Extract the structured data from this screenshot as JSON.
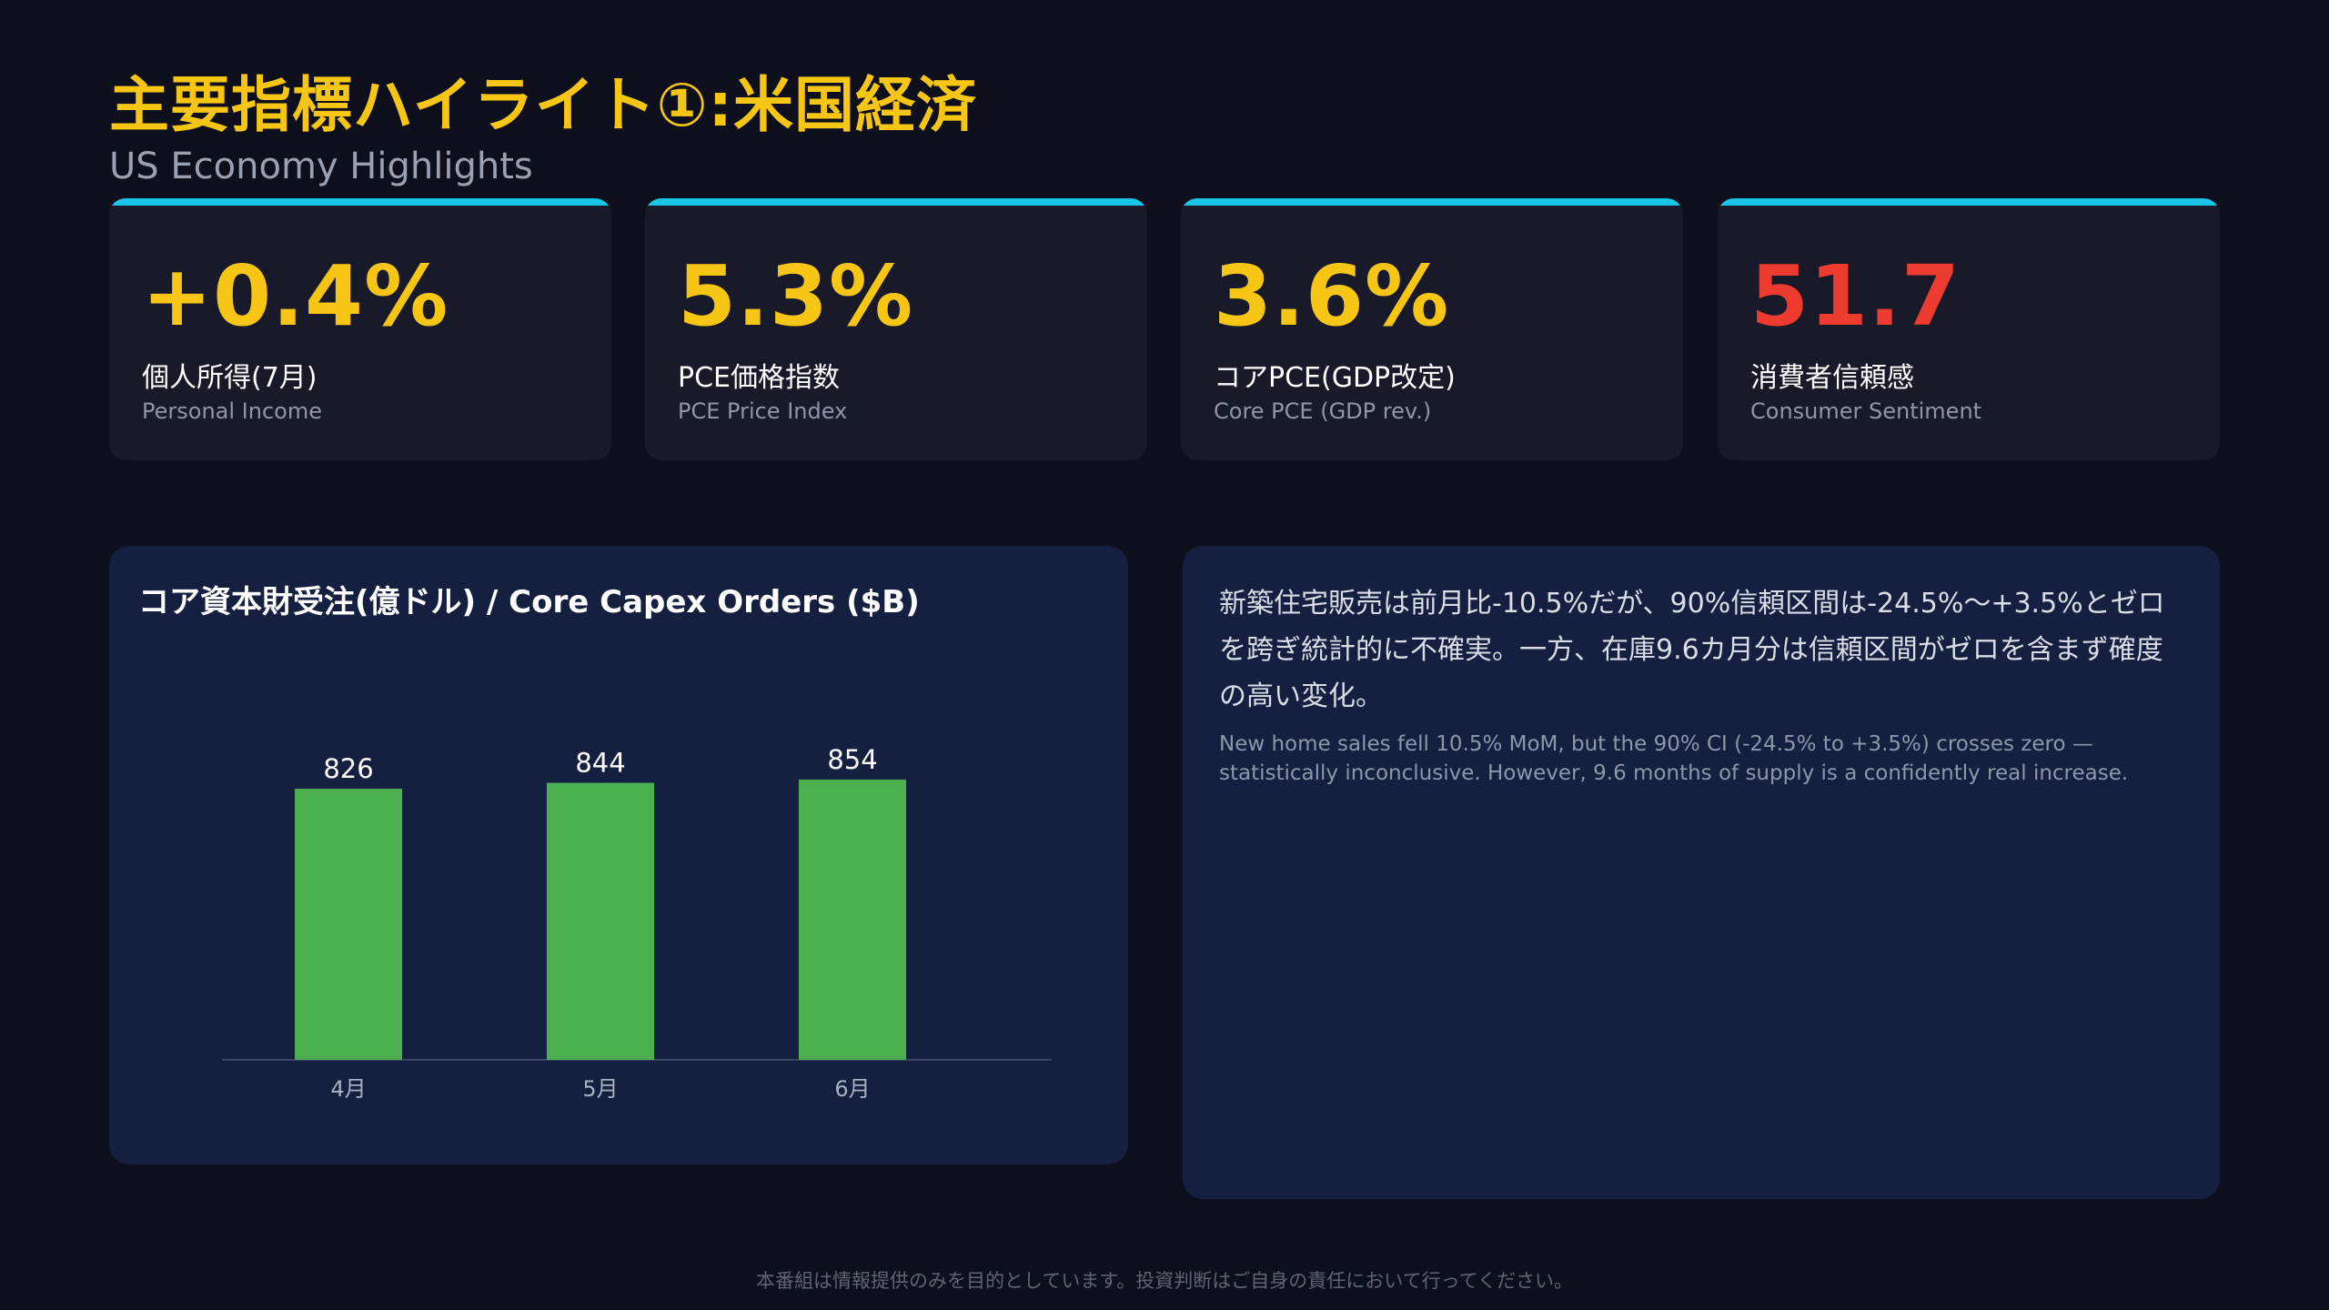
{
  "header": {
    "title": "主要指標ハイライト①:米国経済",
    "subtitle": "US Economy Highlights"
  },
  "kpis": [
    {
      "value": "+0.4%",
      "label_ja": "個人所得(7月)",
      "label_en": "Personal Income",
      "color": "#f7c614"
    },
    {
      "value": "5.3%",
      "label_ja": "PCE価格指数",
      "label_en": "PCE Price Index",
      "color": "#f7c614"
    },
    {
      "value": "3.6%",
      "label_ja": "コアPCE(GDP改定)",
      "label_en": "Core PCE (GDP rev.)",
      "color": "#f7c614"
    },
    {
      "value": "51.7",
      "label_ja": "消費者信頼感",
      "label_en": "Consumer Sentiment",
      "color": "#ee3b30"
    }
  ],
  "chart_data": {
    "type": "bar",
    "title": "コア資本財受注(億ドル) / Core Capex Orders ($B)",
    "categories": [
      "4月",
      "5月",
      "6月"
    ],
    "values": [
      826,
      844,
      854
    ],
    "data_labels": [
      "826",
      "844",
      "854"
    ],
    "bar_color": "#4caf50",
    "ylim": [
      0,
      900
    ],
    "grid": false,
    "legend": "none"
  },
  "note": {
    "ja": "新築住宅販売は前月比-10.5%だが、90%信頼区間は-24.5%〜+3.5%とゼロを跨ぎ統計的に不確実。一方、在庫9.6カ月分は信頼区間がゼロを含まず確度の高い変化。",
    "en": "New home sales fell 10.5% MoM, but the 90% CI (-24.5% to +3.5%) crosses zero — statistically inconclusive. However, 9.6 months of supply is a confidently real increase."
  },
  "footer": {
    "disclaimer": "本番組は情報提供のみを目的としています。投資判断はご自身の責任において行ってください。"
  },
  "colors": {
    "accent": "#f7c614",
    "alert": "#ee3b30",
    "topbar": "#19c6e8"
  }
}
